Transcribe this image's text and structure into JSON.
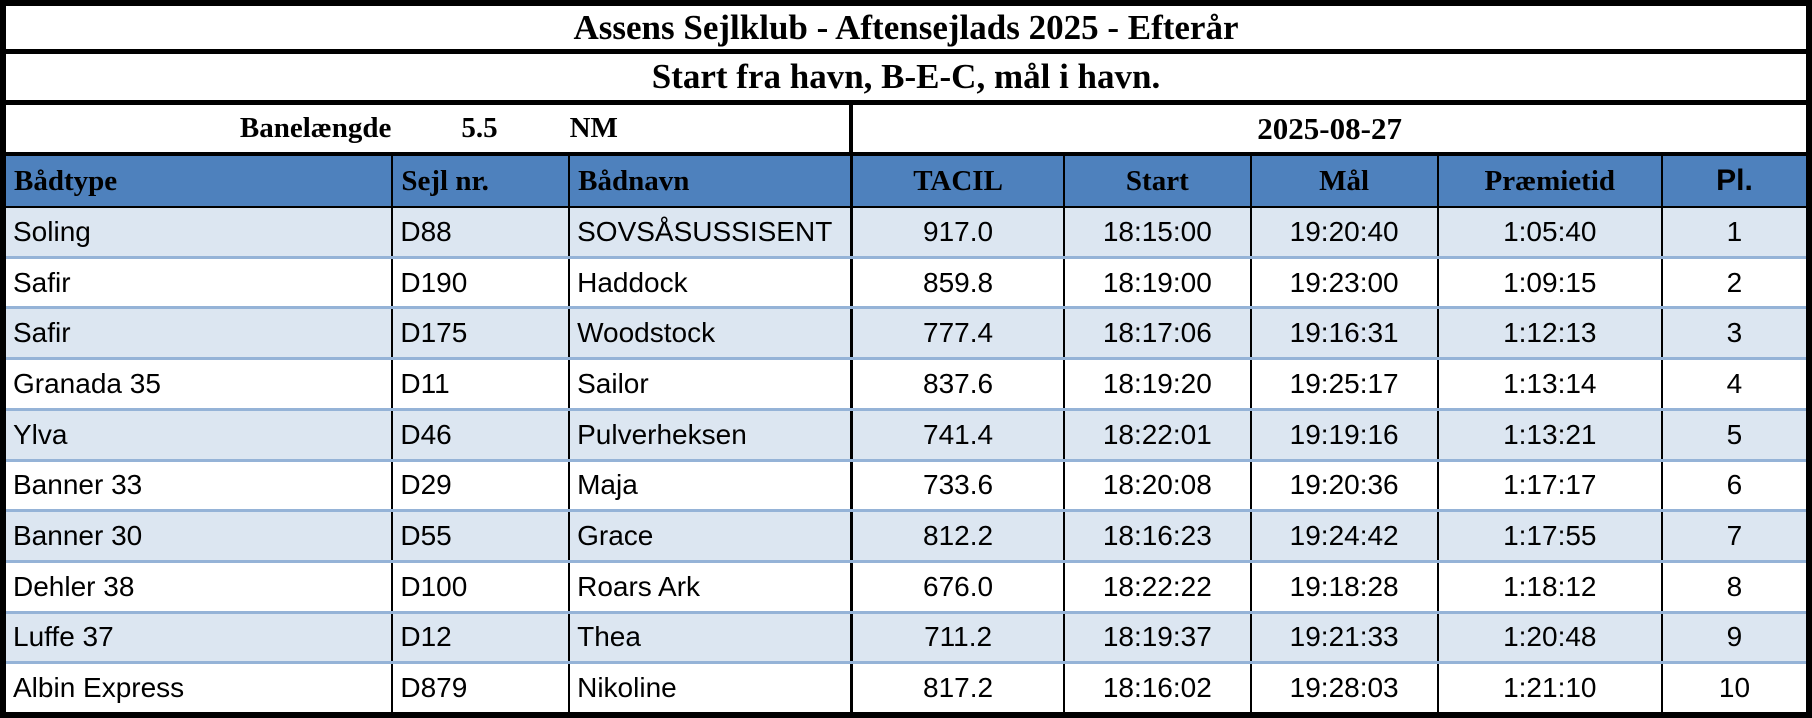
{
  "title": "Assens Sejlklub - Aftensejlads 2025 - Efterår",
  "subtitle": "Start fra havn, B-E-C, mål i havn.",
  "course": {
    "label": "Banelængde",
    "value": "5.5",
    "unit": "NM"
  },
  "race_date": "2025-08-27",
  "columns": [
    "Bådtype",
    "Sejl nr.",
    "Bådnavn",
    "TACIL",
    "Start",
    "Mål",
    "Præmietid",
    "Pl."
  ],
  "rows": [
    [
      "Soling",
      "D88",
      "SOVSÅSUSSISENT",
      "917.0",
      "18:15:00",
      "19:20:40",
      "1:05:40",
      "1"
    ],
    [
      "Safir",
      "D190",
      "Haddock",
      "859.8",
      "18:19:00",
      "19:23:00",
      "1:09:15",
      "2"
    ],
    [
      "Safir",
      "D175",
      "Woodstock",
      "777.4",
      "18:17:06",
      "19:16:31",
      "1:12:13",
      "3"
    ],
    [
      "Granada 35",
      "D11",
      "Sailor",
      "837.6",
      "18:19:20",
      "19:25:17",
      "1:13:14",
      "4"
    ],
    [
      "Ylva",
      "D46",
      "Pulverheksen",
      "741.4",
      "18:22:01",
      "19:19:16",
      "1:13:21",
      "5"
    ],
    [
      "Banner 33",
      "D29",
      "Maja",
      "733.6",
      "18:20:08",
      "19:20:36",
      "1:17:17",
      "6"
    ],
    [
      "Banner 30",
      "D55",
      "Grace",
      "812.2",
      "18:16:23",
      "19:24:42",
      "1:17:55",
      "7"
    ],
    [
      "Dehler 38",
      "D100",
      "Roars Ark",
      "676.0",
      "18:22:22",
      "19:18:28",
      "1:18:12",
      "8"
    ],
    [
      "Luffe 37",
      "D12",
      "Thea",
      "711.2",
      "18:19:37",
      "19:21:33",
      "1:20:48",
      "9"
    ],
    [
      "Albin Express",
      "D879",
      "Nikoline",
      "817.2",
      "18:16:02",
      "19:28:03",
      "1:21:10",
      "10"
    ]
  ],
  "colors": {
    "header_bg": "#4e81bd",
    "band_bg": "#dce6f1",
    "row_separator": "#95b3d7",
    "border": "#000000"
  }
}
